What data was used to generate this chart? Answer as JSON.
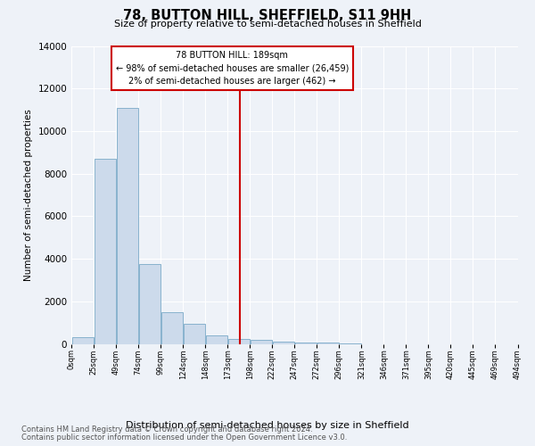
{
  "title": "78, BUTTON HILL, SHEFFIELD, S11 9HH",
  "subtitle": "Size of property relative to semi-detached houses in Sheffield",
  "xlabel": "Distribution of semi-detached houses by size in Sheffield",
  "ylabel": "Number of semi-detached properties",
  "footer1": "Contains HM Land Registry data © Crown copyright and database right 2024.",
  "footer2": "Contains public sector information licensed under the Open Government Licence v3.0.",
  "annotation_title": "78 BUTTON HILL: 189sqm",
  "annotation_line1": "← 98% of semi-detached houses are smaller (26,459)",
  "annotation_line2": "2% of semi-detached houses are larger (462) →",
  "bar_color": "#ccdaeb",
  "bar_edge_color": "#7aaac8",
  "line_color": "#cc0000",
  "annotation_bg": "#ffffff",
  "annotation_edge": "#cc0000",
  "bg_color": "#eef2f8",
  "grid_color": "#ffffff",
  "bin_starts": [
    0,
    25,
    50,
    75,
    100,
    125,
    150,
    175,
    200,
    225,
    250,
    275,
    300,
    325,
    350,
    375,
    400,
    425,
    450,
    475
  ],
  "bin_labels": [
    "0sqm",
    "25sqm",
    "49sqm",
    "74sqm",
    "99sqm",
    "124sqm",
    "148sqm",
    "173sqm",
    "198sqm",
    "222sqm",
    "247sqm",
    "272sqm",
    "296sqm",
    "321sqm",
    "346sqm",
    "371sqm",
    "395sqm",
    "420sqm",
    "445sqm",
    "469sqm",
    "494sqm"
  ],
  "counts": [
    300,
    8700,
    11100,
    3750,
    1500,
    950,
    400,
    250,
    200,
    100,
    75,
    50,
    10,
    0,
    0,
    0,
    0,
    0,
    0,
    0
  ],
  "property_size": 189,
  "ylim": [
    0,
    14000
  ],
  "yticks": [
    0,
    2000,
    4000,
    6000,
    8000,
    10000,
    12000,
    14000
  ]
}
